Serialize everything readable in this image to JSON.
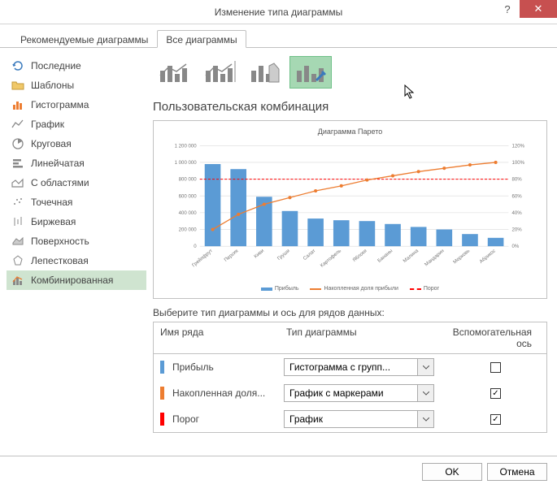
{
  "window": {
    "title": "Изменение типа диаграммы",
    "help": "?",
    "close": "✕"
  },
  "tabs": {
    "recommended": "Рекомендуемые диаграммы",
    "all": "Все диаграммы"
  },
  "sidebar": {
    "items": [
      {
        "label": "Последние"
      },
      {
        "label": "Шаблоны"
      },
      {
        "label": "Гистограмма"
      },
      {
        "label": "График"
      },
      {
        "label": "Круговая"
      },
      {
        "label": "Линейчатая"
      },
      {
        "label": "С областями"
      },
      {
        "label": "Точечная"
      },
      {
        "label": "Биржевая"
      },
      {
        "label": "Поверхность"
      },
      {
        "label": "Лепестковая"
      },
      {
        "label": "Комбинированная"
      }
    ]
  },
  "section_title": "Пользовательская комбинация",
  "preview": {
    "title": "Диаграмма Парето",
    "type": "combo",
    "categories": [
      "Грейпфрут",
      "Персик",
      "Киви",
      "Груши",
      "Салат",
      "Картофель",
      "Яблоки",
      "Бананы",
      "Малина",
      "Мандарин",
      "Морковь",
      "Абрикос"
    ],
    "bars": [
      980000,
      920000,
      590000,
      420000,
      330000,
      310000,
      300000,
      265000,
      230000,
      200000,
      145000,
      100000
    ],
    "bar_color": "#5b9bd5",
    "line_values": [
      20,
      38,
      50,
      58,
      66,
      72,
      79,
      84,
      89,
      93,
      97,
      100
    ],
    "line_color": "#ed7d31",
    "threshold_value": 80,
    "threshold_color": "#ff0000",
    "y_left": {
      "min": 0,
      "max": 1200000,
      "step": 200000
    },
    "y_right": {
      "min": 0,
      "max": 120,
      "step": 20,
      "suffix": "%"
    },
    "grid_color": "#d9d9d9",
    "legend": {
      "bars": "Прибыль",
      "line": "Накопленная доля прибыли",
      "threshold": "Порог"
    }
  },
  "series_section": {
    "label": "Выберите тип диаграммы и ось для рядов данных:",
    "col_name": "Имя ряда",
    "col_type": "Тип диаграммы",
    "col_aux": "Вспомогательная ось",
    "rows": [
      {
        "color": "#5b9bd5",
        "name": "Прибыль",
        "type": "Гистограмма с групп...",
        "aux": false
      },
      {
        "color": "#ed7d31",
        "name": "Накопленная доля...",
        "type": "График с маркерами",
        "aux": true
      },
      {
        "color": "#ff0000",
        "name": "Порог",
        "type": "График",
        "aux": true
      }
    ]
  },
  "footer": {
    "ok": "OK",
    "cancel": "Отмена"
  }
}
